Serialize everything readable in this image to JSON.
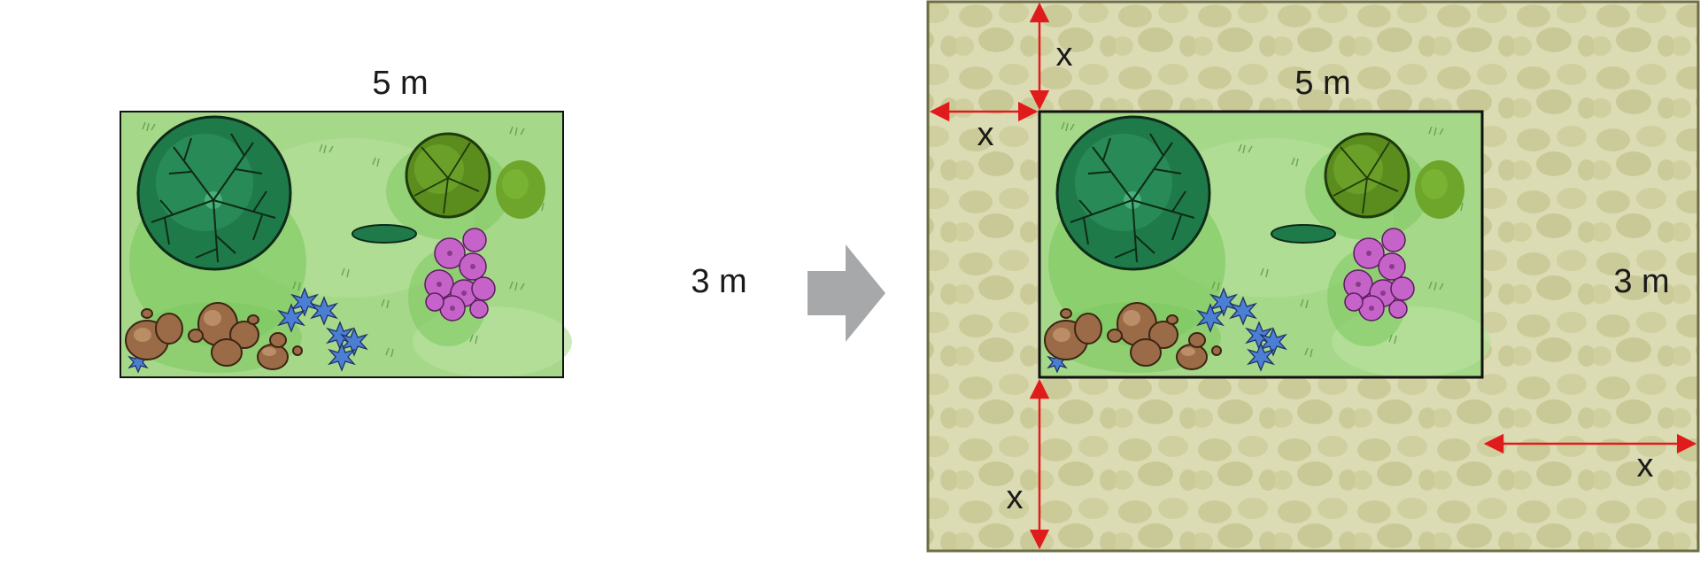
{
  "left_garden": {
    "width_label": "5 m",
    "height_label": "3 m"
  },
  "right_garden": {
    "width_label": "5 m",
    "height_label": "3 m",
    "border_labels": {
      "top": "x",
      "left": "x",
      "bottom": "x",
      "right": "x"
    }
  },
  "colors": {
    "grass": "#a6d88a",
    "grass_dark": "#7cc95e",
    "paving": "#dcdcb4",
    "paving_stone": "#cbcb9a",
    "paving_border": "#6e6e45",
    "arrow_gray": "#a6a8aa",
    "dimension_red": "#e01b1b",
    "tree_dark": "#1f7a4a",
    "tree_olive": "#5a8d1e",
    "flower_pink": "#c563c8",
    "flower_blue": "#4a7fd4",
    "rock_brown": "#9a6b46"
  }
}
